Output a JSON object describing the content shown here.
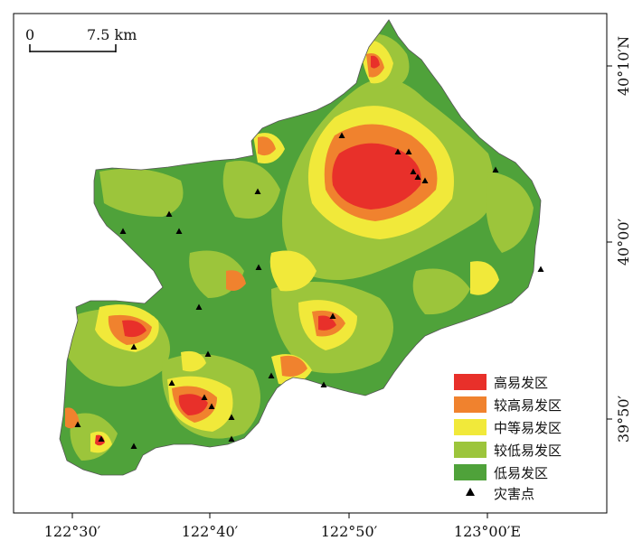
{
  "scale_bar": {
    "start": "0",
    "end": "7.5 km"
  },
  "lon_labels": [
    "122°30′",
    "122°40′",
    "122°50′",
    "123°00′E"
  ],
  "lat_labels": [
    "40°10′N",
    "40°00′",
    "39°50′"
  ],
  "legend": {
    "items": [
      {
        "label": "高易发区",
        "color": "#e8302a"
      },
      {
        "label": "较高易发区",
        "color": "#f0822e"
      },
      {
        "label": "中等易发区",
        "color": "#f1e93a"
      },
      {
        "label": "较低易发区",
        "color": "#9cc53b"
      },
      {
        "label": "低易发区",
        "color": "#4fa23a"
      }
    ],
    "point_label": "灾害点"
  },
  "colors": {
    "very_low": "#4fa23a",
    "low": "#9cc53b",
    "medium": "#f1e93a",
    "high": "#f0822e",
    "very_high": "#e8302a",
    "disaster_point": "#000000"
  }
}
